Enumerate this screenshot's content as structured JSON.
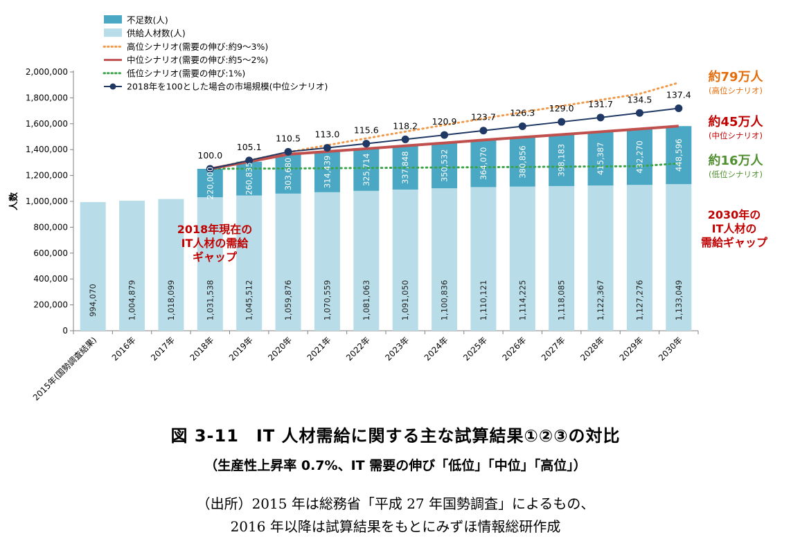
{
  "chart_data": {
    "type": "bar",
    "subtype": "stacked bar with lines",
    "categories": [
      "2015年(国勢調査結果)",
      "2016年",
      "2017年",
      "2018年",
      "2019年",
      "2020年",
      "2021年",
      "2022年",
      "2023年",
      "2024年",
      "2025年",
      "2026年",
      "2027年",
      "2028年",
      "2029年",
      "2030年"
    ],
    "ylabel": "人数",
    "ylim": [
      0,
      2000000
    ],
    "yticks": [
      "0",
      "200,000",
      "400,000",
      "600,000",
      "800,000",
      "1,000,000",
      "1,200,000",
      "1,400,000",
      "1,600,000",
      "1,800,000",
      "2,000,000"
    ],
    "ytick_values": [
      0,
      200000,
      400000,
      600000,
      800000,
      1000000,
      1200000,
      1400000,
      1600000,
      1800000,
      2000000
    ],
    "series": [
      {
        "name": "供給人材数(人)",
        "color": "#b8dde8",
        "values": [
          994070,
          1004879,
          1018099,
          1031538,
          1045512,
          1059876,
          1070559,
          1081063,
          1091050,
          1100836,
          1110121,
          1114225,
          1118085,
          1122367,
          1127276,
          1133049
        ],
        "labels": [
          "994,070",
          "1,004,879",
          "1,018,099",
          "1,031,538",
          "1,045,512",
          "1,059,876",
          "1,070,559",
          "1,081,063",
          "1,091,050",
          "1,100,836",
          "1,110,121",
          "1,114,225",
          "1,118,085",
          "1,122,367",
          "1,127,276",
          "1,133,049"
        ]
      },
      {
        "name": "不足数(人)",
        "color": "#4aa8c4",
        "values": [
          null,
          null,
          null,
          220000,
          260835,
          303680,
          314439,
          325714,
          337848,
          350532,
          364070,
          380856,
          398183,
          415387,
          432270,
          448596
        ],
        "labels": [
          "",
          "",
          "",
          "220,000",
          "260,835",
          "303,680",
          "314,439",
          "325,714",
          "337,848",
          "350,532",
          "364,070",
          "380,856",
          "398,183",
          "415,387",
          "432,270",
          "448,596"
        ]
      }
    ],
    "scenarios": [
      {
        "name": "高位シナリオ(需要の伸び:約9〜3%)",
        "color": "#f39a4a",
        "style": "dotted",
        "values": [
          null,
          null,
          null,
          1251538,
          1316347,
          1380000,
          1434000,
          1487000,
          1539000,
          1590000,
          1640000,
          1689000,
          1737000,
          1784000,
          1831000,
          1917000
        ]
      },
      {
        "name": "中位シナリオ(需要の伸び:約5〜2%)",
        "color": "#c0504d",
        "style": "solid",
        "values": [
          null,
          null,
          null,
          1251538,
          1306347,
          1363556,
          1384998,
          1406777,
          1428898,
          1451368,
          1474191,
          1495081,
          1516268,
          1537754,
          1559546,
          1581645
        ]
      },
      {
        "name": "低位シナリオ(需要の伸び:1%)",
        "color": "#3aa34a",
        "style": "dotted",
        "values": [
          null,
          null,
          null,
          1251538,
          1253000,
          1254000,
          1256000,
          1258000,
          1260000,
          1262000,
          1264000,
          1266000,
          1268000,
          1270000,
          1272000,
          1293000
        ]
      },
      {
        "name": "2018年を100とした場合の市場規模(中位シナリオ)",
        "color": "#1f3864",
        "style": "line-marker",
        "values": [
          null,
          null,
          null,
          1251538,
          1316347,
          1383000,
          1414000,
          1446000,
          1479000,
          1513000,
          1547000,
          1580000,
          1614000,
          1648000,
          1683000,
          1719000
        ],
        "index_labels": [
          "",
          "",
          "",
          "100.0",
          "105.1",
          "110.5",
          "113.0",
          "115.6",
          "118.2",
          "120.9",
          "123.7",
          "126.3",
          "129.0",
          "131.7",
          "134.5",
          "137.4"
        ]
      }
    ],
    "legend": {
      "position": "top-left",
      "items": [
        "不足数(人)",
        "供給人材数(人)",
        "高位シナリオ(需要の伸び:約9〜3%)",
        "中位シナリオ(需要の伸び:約5〜2%)",
        "低位シナリオ(需要の伸び:1%)",
        "2018年を100とした場合の市場規模(中位シナリオ)"
      ]
    },
    "annotations": {
      "high_value": "約79万人",
      "high_label": "(高位シナリオ)",
      "high_color": "#e46c0a",
      "mid_value": "約45万人",
      "mid_label": "(中位シナリオ)",
      "mid_color": "#c00000",
      "low_value": "約16万人",
      "low_label": "(低位シナリオ)",
      "low_color": "#4f8f2f",
      "gap2018": [
        "2018年現在の",
        "IT人材の需給",
        "ギャップ"
      ],
      "gap2030": [
        "2030年の",
        "IT人材の",
        "需給ギャップ"
      ],
      "gap_color": "#c00000"
    }
  },
  "caption": {
    "title": "図 3-11　IT 人材需給に関する主な試算結果①②③の対比",
    "subtitle": "（生産性上昇率 0.7%、IT 需要の伸び「低位」「中位」「高位」）",
    "source_line1": "（出所）2015 年は総務省「平成 27 年国勢調査」によるもの、",
    "source_line2": "2016 年以降は試算結果をもとにみずほ情報総研作成"
  }
}
